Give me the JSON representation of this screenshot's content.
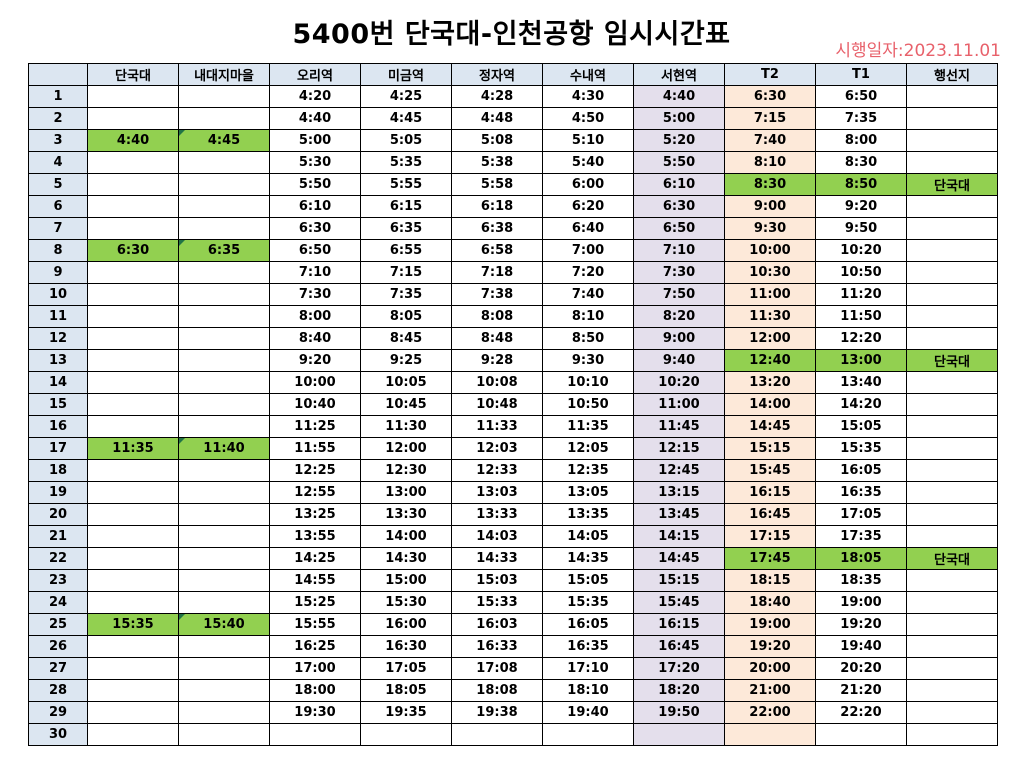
{
  "title": "5400번 단국대-인천공항 임시시간표",
  "effective_date": "시행일자:2023.11.01",
  "colors": {
    "header_bg": "#dce6f1",
    "seohyeon_bg": "#e4dfec",
    "t2_bg": "#fde9d9",
    "highlight": "#92d050",
    "date_red": "#e8616b"
  },
  "headers": [
    "",
    "단국대",
    "내대지마을",
    "오리역",
    "미금역",
    "정자역",
    "수내역",
    "서현역",
    "T2",
    "T1",
    "행선지"
  ],
  "rows": [
    [
      "1",
      "",
      "",
      "4:20",
      "4:25",
      "4:28",
      "4:30",
      "4:40",
      "6:30",
      "6:50",
      ""
    ],
    [
      "2",
      "",
      "",
      "4:40",
      "4:45",
      "4:48",
      "4:50",
      "5:00",
      "7:15",
      "7:35",
      ""
    ],
    [
      "3",
      "4:40",
      "4:45",
      "5:00",
      "5:05",
      "5:08",
      "5:10",
      "5:20",
      "7:40",
      "8:00",
      ""
    ],
    [
      "4",
      "",
      "",
      "5:30",
      "5:35",
      "5:38",
      "5:40",
      "5:50",
      "8:10",
      "8:30",
      ""
    ],
    [
      "5",
      "",
      "",
      "5:50",
      "5:55",
      "5:58",
      "6:00",
      "6:10",
      "8:30",
      "8:50",
      "단국대"
    ],
    [
      "6",
      "",
      "",
      "6:10",
      "6:15",
      "6:18",
      "6:20",
      "6:30",
      "9:00",
      "9:20",
      ""
    ],
    [
      "7",
      "",
      "",
      "6:30",
      "6:35",
      "6:38",
      "6:40",
      "6:50",
      "9:30",
      "9:50",
      ""
    ],
    [
      "8",
      "6:30",
      "6:35",
      "6:50",
      "6:55",
      "6:58",
      "7:00",
      "7:10",
      "10:00",
      "10:20",
      ""
    ],
    [
      "9",
      "",
      "",
      "7:10",
      "7:15",
      "7:18",
      "7:20",
      "7:30",
      "10:30",
      "10:50",
      ""
    ],
    [
      "10",
      "",
      "",
      "7:30",
      "7:35",
      "7:38",
      "7:40",
      "7:50",
      "11:00",
      "11:20",
      ""
    ],
    [
      "11",
      "",
      "",
      "8:00",
      "8:05",
      "8:08",
      "8:10",
      "8:20",
      "11:30",
      "11:50",
      ""
    ],
    [
      "12",
      "",
      "",
      "8:40",
      "8:45",
      "8:48",
      "8:50",
      "9:00",
      "12:00",
      "12:20",
      ""
    ],
    [
      "13",
      "",
      "",
      "9:20",
      "9:25",
      "9:28",
      "9:30",
      "9:40",
      "12:40",
      "13:00",
      "단국대"
    ],
    [
      "14",
      "",
      "",
      "10:00",
      "10:05",
      "10:08",
      "10:10",
      "10:20",
      "13:20",
      "13:40",
      ""
    ],
    [
      "15",
      "",
      "",
      "10:40",
      "10:45",
      "10:48",
      "10:50",
      "11:00",
      "14:00",
      "14:20",
      ""
    ],
    [
      "16",
      "",
      "",
      "11:25",
      "11:30",
      "11:33",
      "11:35",
      "11:45",
      "14:45",
      "15:05",
      ""
    ],
    [
      "17",
      "11:35",
      "11:40",
      "11:55",
      "12:00",
      "12:03",
      "12:05",
      "12:15",
      "15:15",
      "15:35",
      ""
    ],
    [
      "18",
      "",
      "",
      "12:25",
      "12:30",
      "12:33",
      "12:35",
      "12:45",
      "15:45",
      "16:05",
      ""
    ],
    [
      "19",
      "",
      "",
      "12:55",
      "13:00",
      "13:03",
      "13:05",
      "13:15",
      "16:15",
      "16:35",
      ""
    ],
    [
      "20",
      "",
      "",
      "13:25",
      "13:30",
      "13:33",
      "13:35",
      "13:45",
      "16:45",
      "17:05",
      ""
    ],
    [
      "21",
      "",
      "",
      "13:55",
      "14:00",
      "14:03",
      "14:05",
      "14:15",
      "17:15",
      "17:35",
      ""
    ],
    [
      "22",
      "",
      "",
      "14:25",
      "14:30",
      "14:33",
      "14:35",
      "14:45",
      "17:45",
      "18:05",
      "단국대"
    ],
    [
      "23",
      "",
      "",
      "14:55",
      "15:00",
      "15:03",
      "15:05",
      "15:15",
      "18:15",
      "18:35",
      ""
    ],
    [
      "24",
      "",
      "",
      "15:25",
      "15:30",
      "15:33",
      "15:35",
      "15:45",
      "18:40",
      "19:00",
      ""
    ],
    [
      "25",
      "15:35",
      "15:40",
      "15:55",
      "16:00",
      "16:03",
      "16:05",
      "16:15",
      "19:00",
      "19:20",
      ""
    ],
    [
      "26",
      "",
      "",
      "16:25",
      "16:30",
      "16:33",
      "16:35",
      "16:45",
      "19:20",
      "19:40",
      ""
    ],
    [
      "27",
      "",
      "",
      "17:00",
      "17:05",
      "17:08",
      "17:10",
      "17:20",
      "20:00",
      "20:20",
      ""
    ],
    [
      "28",
      "",
      "",
      "18:00",
      "18:05",
      "18:08",
      "18:10",
      "18:20",
      "21:00",
      "21:20",
      ""
    ],
    [
      "29",
      "",
      "",
      "19:30",
      "19:35",
      "19:38",
      "19:40",
      "19:50",
      "22:00",
      "22:20",
      ""
    ],
    [
      "30",
      "",
      "",
      "",
      "",
      "",
      "",
      "",
      "",
      "",
      ""
    ]
  ]
}
